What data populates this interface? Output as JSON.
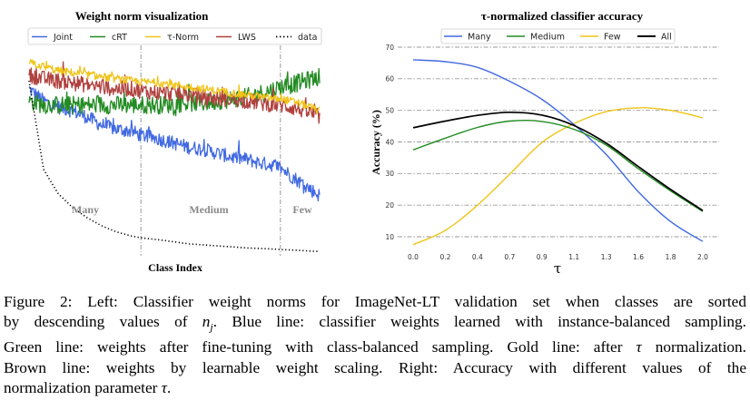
{
  "chart_data": [
    {
      "type": "line",
      "title": "Weight norm visualization",
      "xlabel": "Class Index",
      "ylabel": "",
      "grid": false,
      "y_axis_labeled": false,
      "legend": {
        "placement": "top-center",
        "entries": [
          "Joint",
          "cRT",
          "τ-Norm",
          "LWS",
          "data"
        ]
      },
      "x": [
        0.0,
        0.05,
        0.1,
        0.15,
        0.2,
        0.25,
        0.3,
        0.35,
        0.385,
        0.45,
        0.5,
        0.55,
        0.6,
        0.65,
        0.7,
        0.75,
        0.8,
        0.85,
        0.865,
        0.9,
        0.95,
        1.0
      ],
      "x_note": "normalized class index (sorted by descending n_j); y normalized 0-1 (no numeric ticks shown)",
      "series": [
        {
          "name": "Joint",
          "color": "#4169e1",
          "style": "solid",
          "values": [
            0.82,
            0.76,
            0.73,
            0.71,
            0.68,
            0.64,
            0.62,
            0.61,
            0.59,
            0.57,
            0.55,
            0.53,
            0.52,
            0.5,
            0.48,
            0.47,
            0.45,
            0.44,
            0.43,
            0.39,
            0.34,
            0.29
          ],
          "noise": 0.035
        },
        {
          "name": "cRT",
          "color": "#228b22",
          "style": "solid",
          "values": [
            0.76,
            0.74,
            0.74,
            0.74,
            0.74,
            0.74,
            0.74,
            0.74,
            0.74,
            0.74,
            0.745,
            0.75,
            0.75,
            0.76,
            0.77,
            0.78,
            0.8,
            0.82,
            0.83,
            0.84,
            0.86,
            0.88
          ],
          "noise": 0.045
        },
        {
          "name": "τ-Norm",
          "color": "#f0c419",
          "style": "solid",
          "values": [
            0.95,
            0.93,
            0.91,
            0.9,
            0.89,
            0.88,
            0.87,
            0.86,
            0.855,
            0.85,
            0.84,
            0.83,
            0.82,
            0.81,
            0.8,
            0.79,
            0.78,
            0.77,
            0.77,
            0.76,
            0.74,
            0.71
          ],
          "noise": 0.02
        },
        {
          "name": "LWS",
          "color": "#b0413e",
          "style": "solid",
          "values": [
            0.89,
            0.87,
            0.86,
            0.85,
            0.84,
            0.83,
            0.82,
            0.82,
            0.81,
            0.8,
            0.8,
            0.79,
            0.78,
            0.77,
            0.77,
            0.76,
            0.75,
            0.74,
            0.74,
            0.73,
            0.71,
            0.68
          ],
          "noise": 0.04
        },
        {
          "name": "data",
          "color": "#000000",
          "style": "dotted",
          "values": [
            0.86,
            0.42,
            0.3,
            0.23,
            0.18,
            0.14,
            0.11,
            0.09,
            0.08,
            0.07,
            0.06,
            0.05,
            0.045,
            0.04,
            0.035,
            0.03,
            0.027,
            0.024,
            0.022,
            0.02,
            0.016,
            0.012
          ],
          "noise": 0
        }
      ],
      "regions": [
        {
          "label": "Many",
          "x_range": [
            0.0,
            0.385
          ]
        },
        {
          "label": "Medium",
          "x_range": [
            0.385,
            0.865
          ]
        },
        {
          "label": "Few",
          "x_range": [
            0.865,
            1.0
          ]
        }
      ],
      "region_boundaries": [
        0.385,
        0.865
      ]
    },
    {
      "type": "line",
      "title": "τ-normalized classifier accuracy",
      "xlabel": "τ",
      "ylabel": "Accuracy (%)",
      "grid": true,
      "legend": {
        "placement": "top-center",
        "entries": [
          "Many",
          "Medium",
          "Few",
          "All"
        ]
      },
      "categories": [
        "0.0",
        "0.2",
        "0.4",
        "0.7",
        "0.9",
        "1.1",
        "1.3",
        "1.6",
        "1.8",
        "2.0"
      ],
      "yticks": [
        10,
        20,
        30,
        40,
        50,
        60,
        70
      ],
      "ylim": [
        6,
        71
      ],
      "series": [
        {
          "name": "Many",
          "color": "#4169e1",
          "values": [
            66.0,
            65.4,
            63.6,
            59.2,
            53.5,
            45.5,
            36.0,
            24.2,
            14.8,
            8.5
          ]
        },
        {
          "name": "Medium",
          "color": "#228b22",
          "values": [
            37.5,
            41.2,
            44.6,
            46.6,
            46.5,
            44.0,
            39.0,
            31.5,
            24.5,
            18.0
          ]
        },
        {
          "name": "Few",
          "color": "#f0c419",
          "values": [
            7.5,
            12.0,
            20.0,
            29.8,
            39.8,
            45.8,
            49.6,
            50.8,
            50.0,
            47.6
          ]
        },
        {
          "name": "All",
          "color": "#000000",
          "values": [
            44.5,
            46.6,
            48.4,
            49.4,
            48.5,
            45.2,
            39.6,
            32.2,
            25.0,
            18.3
          ]
        }
      ]
    }
  ],
  "caption": {
    "lines": [
      [
        "Figure 2:  Left:  Classifier weight norms for ImageNet-LT validation set when classes are sorted"
      ],
      [
        "by descending values of ",
        "{n_j}",
        ".  Blue line: classifier weights learned with instance-balanced sampling."
      ],
      [
        "Green line: weights after fine-tuning with class-balanced sampling. Gold line: after ",
        "{τ}",
        " normalization."
      ],
      [
        "Brown line:  weights by learnable weight scaling.  Right:  Accuracy with different values of the"
      ],
      [
        "normalization parameter ",
        "{τ}",
        "."
      ]
    ]
  }
}
